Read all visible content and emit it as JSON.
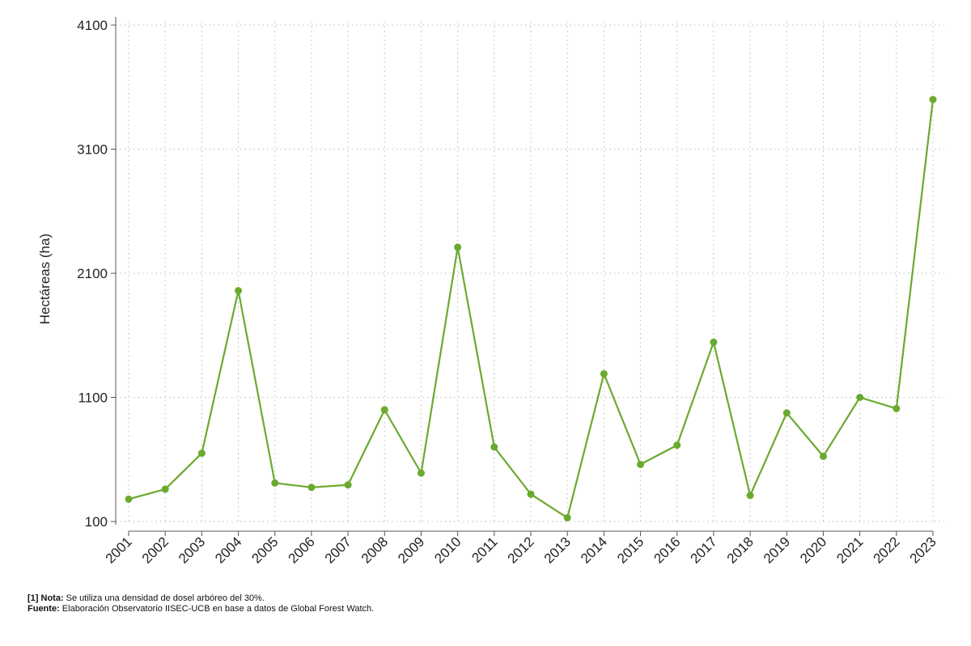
{
  "chart_data": {
    "type": "line",
    "x": [
      "2001",
      "2002",
      "2003",
      "2004",
      "2005",
      "2006",
      "2007",
      "2008",
      "2009",
      "2010",
      "2011",
      "2012",
      "2013",
      "2014",
      "2015",
      "2016",
      "2017",
      "2018",
      "2019",
      "2020",
      "2021",
      "2022",
      "2023"
    ],
    "series": [
      {
        "values": [
          280,
          360,
          650,
          1960,
          410,
          375,
          395,
          1000,
          490,
          2310,
          700,
          320,
          130,
          1290,
          560,
          715,
          1545,
          310,
          975,
          625,
          1100,
          1010,
          3500
        ],
        "color": "#6aaa2e"
      }
    ],
    "title": "",
    "xlabel": "",
    "ylabel": "Hectáreas (ha)",
    "ylim": [
      100,
      4100
    ],
    "yticks": [
      "100",
      "1100",
      "2100",
      "3100",
      "4100"
    ],
    "grid": true,
    "grid_color": "#bbbbbb",
    "axis_color": "#555555"
  },
  "notes": {
    "nota_label": "[1] Nota:",
    "nota_text": " Se utiliza una densidad de dosel arbóreo del 30%.",
    "fuente_label": "Fuente:",
    "fuente_text": " Elaboración Observatorio IISEC-UCB en base a datos de Global Forest Watch."
  }
}
